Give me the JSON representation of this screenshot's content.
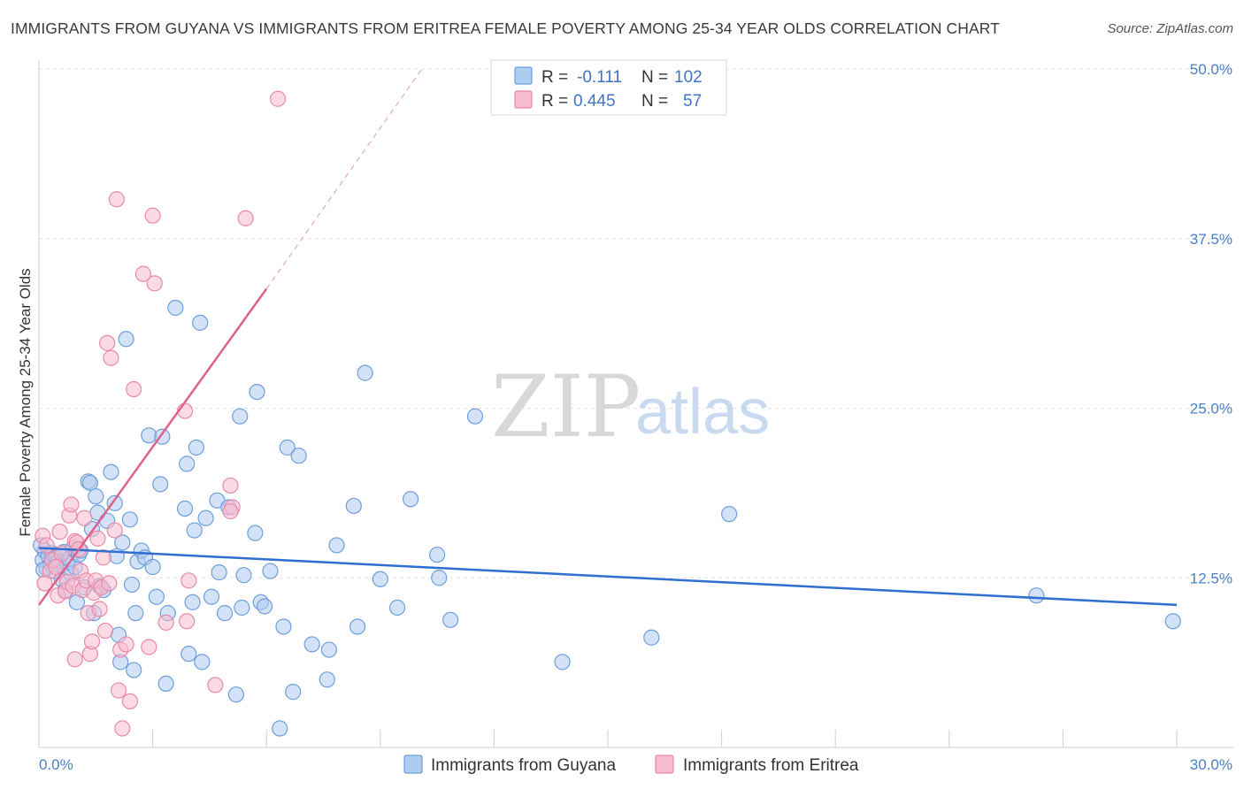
{
  "title": "IMMIGRANTS FROM GUYANA VS IMMIGRANTS FROM ERITREA FEMALE POVERTY AMONG 25-34 YEAR OLDS CORRELATION CHART",
  "source": "Source: ZipAtlas.com",
  "watermark": {
    "zip": "ZIP",
    "atlas": "atlas"
  },
  "colors": {
    "guyana_fill": "#aecbf0",
    "guyana_stroke": "#6d9fdc",
    "guyana_line": "#2f6fcf",
    "eritrea_fill": "#f7bccd",
    "eritrea_stroke": "#e989a8",
    "eritrea_line": "#e0618e",
    "grid": "#e3e3e3",
    "tick_text": "#4a7fc8"
  },
  "legend": {
    "rows": [
      {
        "r_label": "R =",
        "r_value": "-0.111",
        "n_label": "N =",
        "n_value": "102"
      },
      {
        "r_label": "R =",
        "r_value": "0.445",
        "n_label": "N =",
        "n_value": "57"
      }
    ]
  },
  "chart_data": {
    "type": "scatter",
    "title": "IMMIGRANTS FROM GUYANA VS IMMIGRANTS FROM ERITREA FEMALE POVERTY AMONG 25-34 YEAR OLDS CORRELATION CHART",
    "xlabel": "",
    "ylabel": "Female Poverty Among 25-34 Year Olds",
    "xlim": [
      0,
      30
    ],
    "ylim": [
      0,
      50
    ],
    "x_tick_labels": [
      {
        "value": 0,
        "label": "0.0%"
      },
      {
        "value": 30,
        "label": "30.0%"
      }
    ],
    "y_tick_labels": [
      {
        "value": 12.5,
        "label": "12.5%"
      },
      {
        "value": 25,
        "label": "25.0%"
      },
      {
        "value": 37.5,
        "label": "37.5%"
      },
      {
        "value": 50,
        "label": "50.0%"
      }
    ],
    "grid": true,
    "series": [
      {
        "name": "Immigrants from Guyana",
        "r": -0.111,
        "n": 102,
        "trend": {
          "x": [
            0,
            30
          ],
          "y": [
            14.7,
            10.5
          ]
        },
        "points": [
          [
            0.1,
            13.8
          ],
          [
            0.15,
            14.5
          ],
          [
            0.2,
            13.2
          ],
          [
            0.25,
            14.1
          ],
          [
            0.3,
            13.5
          ],
          [
            0.35,
            14.3
          ],
          [
            0.4,
            13.0
          ],
          [
            0.45,
            14.0
          ],
          [
            0.5,
            13.7
          ],
          [
            0.55,
            13.4
          ],
          [
            0.6,
            12.4
          ],
          [
            0.65,
            14.4
          ],
          [
            0.7,
            11.6
          ],
          [
            0.75,
            13.6
          ],
          [
            0.8,
            13.9
          ],
          [
            0.85,
            12.8
          ],
          [
            0.9,
            14.7
          ],
          [
            0.95,
            13.3
          ],
          [
            1.0,
            10.7
          ],
          [
            1.05,
            14.2
          ],
          [
            1.1,
            14.5
          ],
          [
            1.2,
            11.8
          ],
          [
            1.3,
            19.6
          ],
          [
            1.35,
            19.5
          ],
          [
            1.4,
            16.1
          ],
          [
            1.45,
            9.9
          ],
          [
            1.5,
            18.5
          ],
          [
            1.55,
            17.3
          ],
          [
            1.6,
            11.9
          ],
          [
            1.7,
            11.6
          ],
          [
            1.8,
            16.7
          ],
          [
            1.9,
            20.3
          ],
          [
            2.0,
            18.0
          ],
          [
            2.05,
            14.1
          ],
          [
            2.1,
            8.3
          ],
          [
            2.15,
            6.3
          ],
          [
            2.2,
            15.1
          ],
          [
            2.3,
            30.1
          ],
          [
            2.4,
            16.8
          ],
          [
            2.45,
            12.0
          ],
          [
            2.5,
            5.7
          ],
          [
            2.55,
            9.9
          ],
          [
            2.6,
            13.7
          ],
          [
            2.7,
            14.5
          ],
          [
            2.8,
            14.0
          ],
          [
            2.9,
            23.0
          ],
          [
            3.0,
            13.3
          ],
          [
            3.1,
            11.1
          ],
          [
            3.2,
            19.4
          ],
          [
            3.25,
            22.9
          ],
          [
            3.35,
            4.7
          ],
          [
            3.4,
            9.9
          ],
          [
            3.6,
            32.4
          ],
          [
            3.85,
            17.6
          ],
          [
            3.9,
            20.9
          ],
          [
            3.95,
            6.9
          ],
          [
            4.05,
            10.7
          ],
          [
            4.1,
            16.0
          ],
          [
            4.15,
            22.1
          ],
          [
            4.25,
            31.3
          ],
          [
            4.3,
            6.3
          ],
          [
            4.4,
            16.9
          ],
          [
            4.55,
            11.1
          ],
          [
            4.7,
            18.2
          ],
          [
            4.75,
            12.9
          ],
          [
            4.9,
            9.9
          ],
          [
            5.0,
            17.7
          ],
          [
            5.2,
            3.9
          ],
          [
            5.3,
            24.4
          ],
          [
            5.35,
            10.3
          ],
          [
            5.4,
            12.7
          ],
          [
            5.7,
            15.8
          ],
          [
            5.75,
            26.2
          ],
          [
            5.85,
            10.7
          ],
          [
            5.95,
            10.4
          ],
          [
            6.1,
            13.0
          ],
          [
            6.35,
            1.4
          ],
          [
            6.45,
            8.9
          ],
          [
            6.55,
            22.1
          ],
          [
            6.7,
            4.1
          ],
          [
            6.85,
            21.5
          ],
          [
            7.2,
            7.6
          ],
          [
            7.6,
            5.0
          ],
          [
            7.65,
            7.2
          ],
          [
            7.85,
            14.9
          ],
          [
            8.3,
            17.8
          ],
          [
            8.4,
            8.9
          ],
          [
            8.6,
            27.6
          ],
          [
            9.0,
            12.4
          ],
          [
            9.45,
            10.3
          ],
          [
            9.8,
            18.3
          ],
          [
            10.5,
            14.2
          ],
          [
            10.55,
            12.5
          ],
          [
            10.85,
            9.4
          ],
          [
            11.5,
            24.4
          ],
          [
            13.8,
            6.3
          ],
          [
            16.15,
            8.1
          ],
          [
            18.2,
            17.2
          ],
          [
            26.3,
            11.2
          ],
          [
            29.9,
            9.3
          ],
          [
            0.05,
            14.9
          ],
          [
            0.12,
            13.1
          ]
        ]
      },
      {
        "name": "Immigrants from Eritrea",
        "r": 0.445,
        "n": 57,
        "trend": {
          "x": [
            0,
            6
          ],
          "y": [
            10.5,
            33.8
          ]
        },
        "trend_dashed": {
          "x": [
            6,
            10.1
          ],
          "y": [
            33.8,
            50.0
          ]
        },
        "points": [
          [
            0.1,
            15.6
          ],
          [
            0.2,
            14.9
          ],
          [
            0.3,
            13.0
          ],
          [
            0.35,
            13.8
          ],
          [
            0.45,
            13.3
          ],
          [
            0.5,
            11.2
          ],
          [
            0.55,
            15.9
          ],
          [
            0.6,
            14.3
          ],
          [
            0.7,
            11.5
          ],
          [
            0.75,
            12.2
          ],
          [
            0.8,
            17.1
          ],
          [
            0.85,
            17.9
          ],
          [
            0.9,
            11.9
          ],
          [
            0.95,
            15.2
          ],
          [
            1.0,
            15.1
          ],
          [
            1.05,
            14.6
          ],
          [
            1.1,
            13.0
          ],
          [
            1.15,
            11.6
          ],
          [
            1.2,
            16.9
          ],
          [
            1.25,
            12.3
          ],
          [
            1.3,
            9.9
          ],
          [
            1.35,
            6.9
          ],
          [
            1.4,
            7.8
          ],
          [
            1.45,
            11.4
          ],
          [
            1.5,
            12.3
          ],
          [
            1.55,
            15.4
          ],
          [
            1.6,
            10.2
          ],
          [
            1.65,
            11.8
          ],
          [
            1.7,
            14.0
          ],
          [
            1.8,
            29.8
          ],
          [
            1.85,
            12.1
          ],
          [
            1.9,
            28.7
          ],
          [
            2.0,
            16.0
          ],
          [
            2.05,
            40.4
          ],
          [
            2.1,
            4.2
          ],
          [
            2.15,
            7.2
          ],
          [
            2.2,
            1.4
          ],
          [
            2.3,
            7.6
          ],
          [
            2.4,
            3.4
          ],
          [
            2.5,
            26.4
          ],
          [
            2.75,
            34.9
          ],
          [
            2.9,
            7.4
          ],
          [
            3.0,
            39.2
          ],
          [
            3.05,
            34.2
          ],
          [
            3.35,
            9.2
          ],
          [
            3.85,
            24.8
          ],
          [
            3.9,
            9.3
          ],
          [
            3.95,
            12.3
          ],
          [
            4.65,
            4.6
          ],
          [
            5.1,
            17.7
          ],
          [
            5.05,
            17.4
          ],
          [
            5.45,
            39.0
          ],
          [
            5.05,
            19.3
          ],
          [
            6.3,
            47.8
          ],
          [
            0.15,
            12.1
          ],
          [
            0.95,
            6.5
          ],
          [
            1.75,
            8.6
          ]
        ]
      }
    ],
    "legend_entries": [
      "Immigrants from Guyana",
      "Immigrants from Eritrea"
    ],
    "legend_position": "top-center"
  }
}
